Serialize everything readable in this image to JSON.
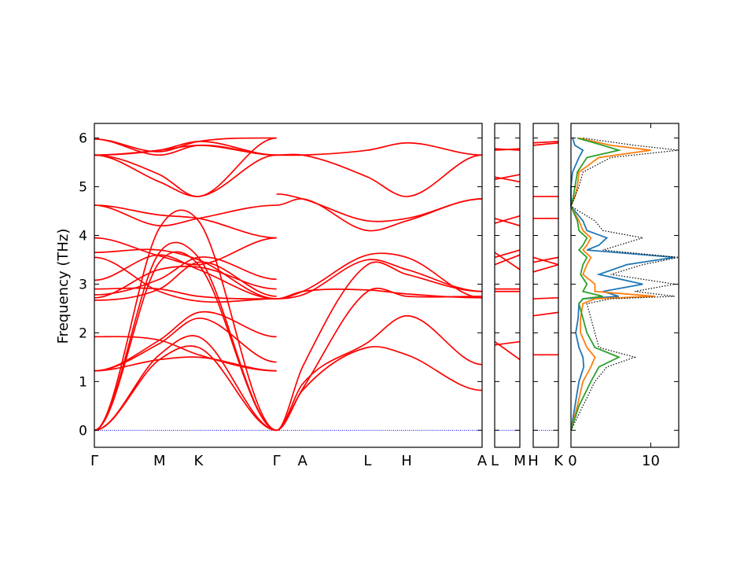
{
  "chart_data": [
    {
      "type": "line",
      "panel": "band-main",
      "ylabel": "Frequency (THz)",
      "ylim": [
        -0.35,
        6.3
      ],
      "yticks": [
        0,
        1,
        2,
        3,
        4,
        5,
        6
      ],
      "x_labels": [
        "Γ",
        "M",
        "K",
        "Γ",
        "A",
        "L",
        "H",
        "A"
      ],
      "line_color": "#ff0000",
      "zero_line_color": "#0000ff",
      "segments": [
        {
          "x": [
            0,
            0.5,
            0.8,
            1.4
          ],
          "series": [
            {
              "values": [
                0,
                1.55,
                1.92,
                0
              ]
            },
            {
              "values": [
                0,
                1.45,
                1.7,
                0
              ]
            },
            {
              "values": [
                0,
                3.45,
                3.4,
                0
              ]
            },
            {
              "values": [
                0,
                3.65,
                3.55,
                0
              ]
            },
            {
              "values": [
                0,
                4.15,
                4.3,
                0
              ]
            },
            {
              "values": [
                1.22,
                1.78,
                2.3,
                1.4
              ]
            },
            {
              "values": [
                1.22,
                1.85,
                2.42,
                1.92
              ]
            },
            {
              "values": [
                1.22,
                1.45,
                1.5,
                1.22
              ]
            },
            {
              "values": [
                1.92,
                1.85,
                1.55,
                1.22
              ]
            },
            {
              "values": [
                2.67,
                2.9,
                3.45,
                2.75
              ]
            },
            {
              "values": [
                2.72,
                3.3,
                3.35,
                2.9
              ]
            },
            {
              "values": [
                2.78,
                3.1,
                3.55,
                3.1
              ]
            },
            {
              "values": [
                2.9,
                2.9,
                2.75,
                2.7
              ]
            },
            {
              "values": [
                3.08,
                3.6,
                3.3,
                2.7
              ]
            },
            {
              "values": [
                3.55,
                2.85,
                2.65,
                2.7
              ]
            },
            {
              "values": [
                3.65,
                3.7,
                3.5,
                2.7
              ]
            },
            {
              "values": [
                3.95,
                3.58,
                3.4,
                3.95
              ]
            },
            {
              "values": [
                4.62,
                4.42,
                4.35,
                3.95
              ]
            },
            {
              "values": [
                4.62,
                4.2,
                4.35,
                4.62
              ]
            },
            {
              "values": [
                5.65,
                5.1,
                4.8,
                5.65
              ]
            },
            {
              "values": [
                5.65,
                5.25,
                4.8,
                6.0
              ]
            },
            {
              "values": [
                5.65,
                5.75,
                5.93,
                5.65
              ]
            },
            {
              "values": [
                5.65,
                5.75,
                5.85,
                5.65
              ]
            },
            {
              "values": [
                5.98,
                5.72,
                5.93,
                6.0
              ]
            },
            {
              "values": [
                5.98,
                5.65,
                5.85,
                5.65
              ]
            }
          ]
        },
        {
          "x": [
            1.4,
            1.6,
            2.1,
            2.4,
            2.98
          ],
          "series": [
            {
              "values": [
                0,
                0.82,
                1.7,
                1.55,
                0.82
              ]
            },
            {
              "values": [
                0,
                0.95,
                1.8,
                2.35,
                1.35
              ]
            },
            {
              "values": [
                0,
                1.3,
                3.4,
                3.2,
                2.85
              ]
            },
            {
              "values": [
                0,
                0.85,
                2.85,
                2.75,
                2.75
              ]
            },
            {
              "values": [
                2.7,
                2.78,
                3.5,
                3.3,
                2.85
              ]
            },
            {
              "values": [
                2.7,
                2.85,
                3.6,
                3.55,
                2.72
              ]
            },
            {
              "values": [
                2.7,
                2.85,
                2.88,
                2.8,
                2.72
              ]
            },
            {
              "values": [
                4.85,
                4.75,
                4.3,
                4.35,
                4.75
              ]
            },
            {
              "values": [
                4.62,
                4.75,
                4.1,
                4.3,
                4.75
              ]
            },
            {
              "values": [
                5.65,
                5.65,
                5.2,
                4.8,
                5.65
              ]
            },
            {
              "values": [
                5.65,
                5.65,
                5.75,
                5.9,
                5.65
              ]
            }
          ]
        }
      ]
    },
    {
      "type": "line",
      "panel": "band-L-M",
      "x_labels": [
        "L",
        "M"
      ],
      "x": [
        0,
        1
      ],
      "series": [
        {
          "values": [
            1.75,
            1.82
          ]
        },
        {
          "values": [
            1.82,
            1.45
          ]
        },
        {
          "values": [
            2.85,
            2.85
          ]
        },
        {
          "values": [
            2.9,
            2.9
          ]
        },
        {
          "values": [
            3.4,
            3.6
          ]
        },
        {
          "values": [
            3.55,
            3.7
          ]
        },
        {
          "values": [
            3.65,
            3.3
          ]
        },
        {
          "values": [
            4.25,
            4.4
          ]
        },
        {
          "values": [
            4.35,
            4.2
          ]
        },
        {
          "values": [
            5.15,
            5.25
          ]
        },
        {
          "values": [
            5.2,
            5.1
          ]
        },
        {
          "values": [
            5.75,
            5.78
          ]
        },
        {
          "values": [
            5.78,
            5.75
          ]
        }
      ]
    },
    {
      "type": "line",
      "panel": "band-H-K",
      "x_labels": [
        "H",
        "K"
      ],
      "x": [
        0,
        1
      ],
      "series": [
        {
          "values": [
            1.55,
            1.55
          ]
        },
        {
          "values": [
            2.35,
            2.42
          ]
        },
        {
          "values": [
            2.7,
            2.72
          ]
        },
        {
          "values": [
            3.25,
            3.4
          ]
        },
        {
          "values": [
            3.45,
            3.55
          ]
        },
        {
          "values": [
            3.55,
            3.4
          ]
        },
        {
          "values": [
            4.35,
            4.35
          ]
        },
        {
          "values": [
            4.8,
            4.8
          ]
        },
        {
          "values": [
            5.9,
            5.93
          ]
        },
        {
          "values": [
            5.85,
            5.9
          ]
        }
      ]
    },
    {
      "type": "line",
      "panel": "dos",
      "xlim": [
        0,
        13.5
      ],
      "xticks": [
        0,
        10
      ],
      "colors": [
        "#1f77b4",
        "#ff7f0e",
        "#2ca02c",
        "#000000"
      ],
      "y": [
        0,
        0.5,
        1.0,
        1.3,
        1.5,
        1.7,
        2.0,
        2.3,
        2.6,
        2.7,
        2.75,
        2.85,
        3.0,
        3.2,
        3.4,
        3.55,
        3.7,
        3.8,
        3.95,
        4.1,
        4.3,
        4.6,
        4.8,
        5.0,
        5.3,
        5.6,
        5.75,
        5.85,
        6.0
      ],
      "series": [
        {
          "values": [
            0,
            0.5,
            1.0,
            1.6,
            1.5,
            1.0,
            0.6,
            0.9,
            1.0,
            1.5,
            6.0,
            4.0,
            9.0,
            3.5,
            7.0,
            13.0,
            2.0,
            3.5,
            4.5,
            2.0,
            1.5,
            0,
            0,
            0,
            0.2,
            1.0,
            1.5,
            0.5,
            0.2
          ]
        },
        {
          "values": [
            0,
            0.8,
            1.5,
            2.5,
            3.0,
            2.0,
            1.2,
            1.2,
            1.5,
            3.0,
            10.5,
            3.0,
            3.0,
            1.5,
            2.0,
            2.5,
            1.5,
            2.0,
            2.5,
            1.5,
            1.0,
            0,
            0.5,
            0.8,
            1.0,
            3.5,
            10.0,
            5.0,
            1.0
          ]
        },
        {
          "values": [
            0,
            1.0,
            2.5,
            3.5,
            6.0,
            3.0,
            2.0,
            1.5,
            1.0,
            1.5,
            4.0,
            1.5,
            2.0,
            1.2,
            1.5,
            2.0,
            1.0,
            1.5,
            2.0,
            1.0,
            0.8,
            0,
            0.3,
            0.5,
            0.8,
            2.0,
            6.0,
            4.0,
            0.8
          ]
        },
        {
          "values": [
            0,
            1.5,
            3.0,
            4.5,
            8.0,
            3.5,
            3.0,
            2.5,
            2.0,
            5.0,
            13.0,
            8.0,
            13.0,
            5.0,
            9.0,
            13.5,
            4.0,
            6.0,
            9.0,
            4.0,
            3.0,
            0,
            0.5,
            1.0,
            1.5,
            5.0,
            13.5,
            8.0,
            1.5
          ]
        }
      ]
    }
  ]
}
